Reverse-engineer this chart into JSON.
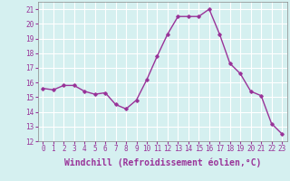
{
  "x": [
    0,
    1,
    2,
    3,
    4,
    5,
    6,
    7,
    8,
    9,
    10,
    11,
    12,
    13,
    14,
    15,
    16,
    17,
    18,
    19,
    20,
    21,
    22,
    23
  ],
  "y": [
    15.6,
    15.5,
    15.8,
    15.8,
    15.4,
    15.2,
    15.3,
    14.5,
    14.2,
    14.8,
    16.2,
    17.8,
    19.3,
    20.5,
    20.5,
    20.5,
    21.0,
    19.3,
    17.3,
    16.6,
    15.4,
    15.1,
    13.2,
    12.5
  ],
  "line_color": "#993399",
  "marker": "D",
  "markersize": 1.8,
  "linewidth": 1.0,
  "xlabel": "Windchill (Refroidissement éolien,°C)",
  "ylim": [
    12,
    21.5
  ],
  "xlim": [
    -0.5,
    23.5
  ],
  "yticks": [
    12,
    13,
    14,
    15,
    16,
    17,
    18,
    19,
    20,
    21
  ],
  "xticks": [
    0,
    1,
    2,
    3,
    4,
    5,
    6,
    7,
    8,
    9,
    10,
    11,
    12,
    13,
    14,
    15,
    16,
    17,
    18,
    19,
    20,
    21,
    22,
    23
  ],
  "bg_color": "#d5f0f0",
  "grid_color": "#ffffff",
  "tick_label_color": "#993399",
  "axis_label_color": "#993399",
  "tick_fontsize": 5.5,
  "xlabel_fontsize": 7.0
}
